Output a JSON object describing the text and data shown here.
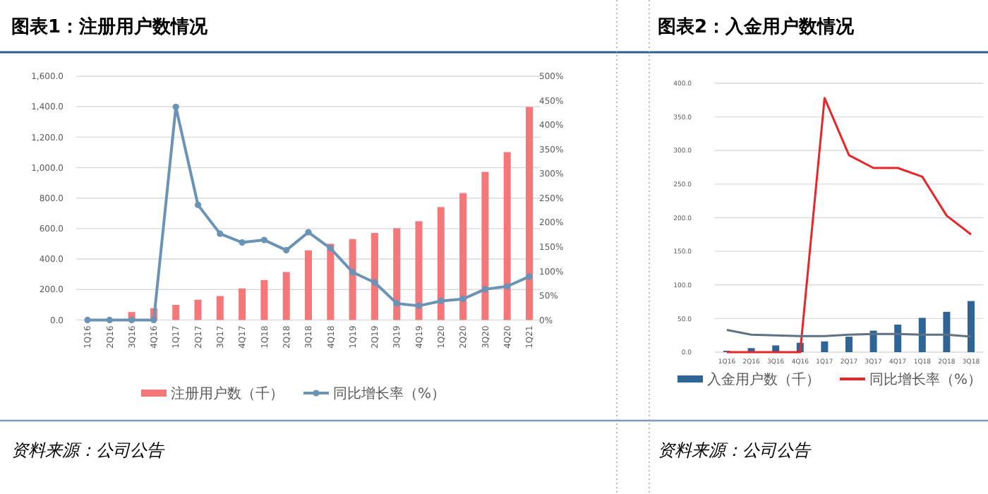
{
  "chart_data": [
    {
      "type": "bar",
      "title": "图表1：注册用户数情况",
      "categories": [
        "1Q16",
        "2Q16",
        "3Q16",
        "4Q16",
        "1Q17",
        "2Q17",
        "3Q17",
        "4Q17",
        "1Q18",
        "2Q18",
        "3Q18",
        "4Q18",
        "1Q19",
        "2Q19",
        "3Q19",
        "4Q19",
        "1Q20",
        "2Q20",
        "3Q20",
        "4Q20",
        "1Q21"
      ],
      "series": [
        {
          "name": "注册用户数（千）",
          "color": "#f4777a",
          "values": [
            null,
            null,
            52,
            77,
            99,
            133,
            157,
            207,
            262,
            315,
            457,
            500,
            531,
            571,
            602,
            648,
            741,
            833,
            972,
            1102,
            1398
          ]
        },
        {
          "name": "同比增长率（%）",
          "type": "line",
          "axis": "y2",
          "marker": "circle",
          "color": "#6a93b5",
          "values": [
            0,
            0,
            0,
            0,
            437,
            236,
            177,
            159,
            164,
            143,
            180,
            147,
            98,
            77,
            34,
            29,
            39,
            43,
            63,
            69,
            89
          ]
        }
      ],
      "ylim": [
        0,
        1600
      ],
      "yticks": [
        {
          "value": 0,
          "label": "0.0"
        },
        {
          "value": 200,
          "label": "200.0"
        },
        {
          "value": 400,
          "label": "400.0"
        },
        {
          "value": 600,
          "label": "600.0"
        },
        {
          "value": 800,
          "label": "800.0"
        },
        {
          "value": 1000,
          "label": "1,000.0"
        },
        {
          "value": 1200,
          "label": "1,200.0"
        },
        {
          "value": 1400,
          "label": "1,400.0"
        },
        {
          "value": 1600,
          "label": "1,600.0"
        }
      ],
      "y2lim": [
        0,
        500
      ],
      "y2ticks": [
        {
          "value": 0,
          "label": "0%"
        },
        {
          "value": 50,
          "label": "50%"
        },
        {
          "value": 100,
          "label": "100%"
        },
        {
          "value": 150,
          "label": "150%"
        },
        {
          "value": 200,
          "label": "200%"
        },
        {
          "value": 250,
          "label": "250%"
        },
        {
          "value": 300,
          "label": "300%"
        },
        {
          "value": 350,
          "label": "350%"
        },
        {
          "value": 400,
          "label": "400%"
        },
        {
          "value": 450,
          "label": "450%"
        },
        {
          "value": 500,
          "label": "500%"
        }
      ],
      "grid": "y",
      "legend": "bottom",
      "annotations": [
        "资料来源：公司公告"
      ]
    },
    {
      "type": "bar",
      "title": "图表2：入金用户数情况",
      "categories": [
        "1Q16",
        "2Q16",
        "3Q16",
        "4Q16",
        "1Q17",
        "2Q17",
        "3Q17",
        "4Q17",
        "1Q18",
        "2Q18",
        "3Q18"
      ],
      "series": [
        {
          "name": "入金用户数（千）",
          "color": "#2e6596",
          "values": [
            2,
            6,
            10,
            14,
            16,
            23,
            32,
            41,
            51,
            60,
            76
          ]
        },
        {
          "name": "同比增长率（%）",
          "type": "line",
          "color": "#e8262a",
          "values": [
            0,
            0,
            0,
            0,
            378,
            293,
            274,
            274,
            261,
            203,
            175
          ]
        },
        {
          "type": "line",
          "color": "#5f7283",
          "values": [
            33,
            26,
            25,
            24,
            24,
            26,
            27,
            27,
            26,
            26,
            23
          ]
        }
      ],
      "ylim": [
        0,
        400
      ],
      "yticks": [
        {
          "value": 0,
          "label": "0.0"
        },
        {
          "value": 50,
          "label": "50.0"
        },
        {
          "value": 100,
          "label": "100.0"
        },
        {
          "value": 150,
          "label": "150.0"
        },
        {
          "value": 200,
          "label": "200.0"
        },
        {
          "value": 250,
          "label": "250.0"
        },
        {
          "value": 300,
          "label": "300.0"
        },
        {
          "value": 350,
          "label": "350.0"
        },
        {
          "value": 400,
          "label": "400.0"
        }
      ],
      "grid": "y",
      "legend": "bottom",
      "annotations": [
        "资料来源：公司公告"
      ]
    }
  ]
}
